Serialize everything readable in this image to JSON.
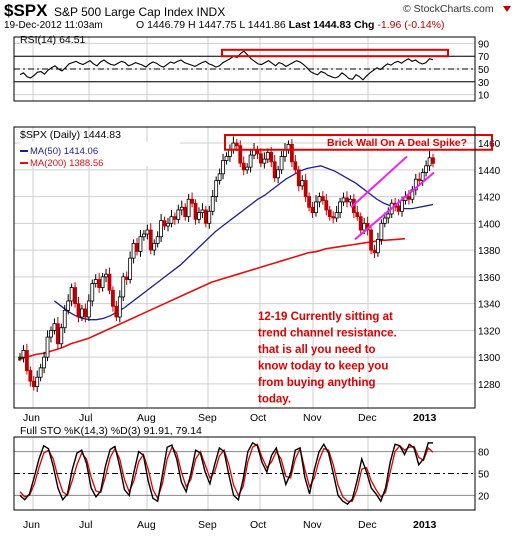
{
  "header": {
    "symbol": "$SPX",
    "name": "S&P 500 Large Cap Index INDX",
    "datetime": "19-Dec-2012 11:03am",
    "open_label": "O",
    "open": "1446.79",
    "high_label": "H",
    "high": "1447.75",
    "low_label": "L",
    "low": "1441.86",
    "last_label": "Last",
    "last": "1444.83",
    "chg_label": "Chg",
    "chg": "-1.96 (-0.14%)",
    "logo": "© StockCharts.com"
  },
  "colors": {
    "price": "#000000",
    "ma50": "#1f1f8f",
    "ma200": "#e01010",
    "pink": "#ee22ee",
    "red": "#e00000",
    "grid": "#cfcfcf"
  },
  "chart_data": [
    {
      "type": "line",
      "panel": "RSI",
      "legend": "RSI(14) 64.51",
      "ylim": [
        0,
        100
      ],
      "yticks": [
        10,
        30,
        50,
        70,
        90
      ],
      "reference_lines": [
        30,
        50,
        70
      ],
      "series": [
        {
          "name": "RSI(14)",
          "values": [
            41,
            44,
            38,
            36,
            40,
            45,
            46,
            42,
            48,
            52,
            55,
            50,
            47,
            52,
            58,
            60,
            62,
            59,
            57,
            60,
            63,
            58,
            55,
            61,
            64,
            60,
            57,
            56,
            59,
            62,
            60,
            55,
            57,
            60,
            58,
            56,
            53,
            58,
            61,
            59,
            55,
            53,
            57,
            61,
            59,
            62,
            64,
            60,
            58,
            56,
            54,
            57,
            60,
            62,
            58,
            56,
            53,
            55,
            60,
            63,
            66,
            70,
            68,
            74,
            78,
            72,
            66,
            62,
            58,
            57,
            60,
            63,
            59,
            55,
            60,
            58,
            54,
            57,
            60,
            63,
            61,
            57,
            52,
            46,
            43,
            41,
            46,
            44,
            40,
            38,
            36,
            38,
            44,
            40,
            35,
            34,
            41,
            38,
            33,
            39,
            44,
            48,
            52,
            49,
            54,
            58,
            56,
            60,
            62,
            59,
            63,
            66,
            62,
            64,
            60,
            58,
            60,
            66,
            64.51
          ]
        }
      ],
      "annotation_box_range": [
        70,
        80
      ]
    },
    {
      "type": "candlestick",
      "panel": "Price",
      "legend": [
        "$SPX (Daily) 1444.83",
        "MA(50) 1414.06",
        "MA(200) 1388.56"
      ],
      "ylim": [
        1262,
        1472
      ],
      "yticks": [
        1280,
        1300,
        1320,
        1340,
        1360,
        1380,
        1400,
        1420,
        1440,
        1460
      ],
      "xlabels": [
        "Jun",
        "Jul",
        "Aug",
        "Sep",
        "Oct",
        "Nov",
        "Dec",
        "2013"
      ],
      "series": [
        {
          "name": "$SPX",
          "values": [
            1300,
            1305,
            1290,
            1282,
            1278,
            1285,
            1292,
            1300,
            1315,
            1320,
            1325,
            1310,
            1322,
            1335,
            1342,
            1352,
            1340,
            1330,
            1336,
            1330,
            1342,
            1355,
            1358,
            1352,
            1360,
            1362,
            1350,
            1338,
            1330,
            1345,
            1360,
            1358,
            1374,
            1385,
            1379,
            1390,
            1392,
            1395,
            1380,
            1385,
            1390,
            1402,
            1398,
            1400,
            1405,
            1403,
            1410,
            1412,
            1405,
            1418,
            1415,
            1403,
            1408,
            1410,
            1400,
            1409,
            1420,
            1432,
            1437,
            1447,
            1450,
            1455,
            1460,
            1458,
            1445,
            1440,
            1442,
            1451,
            1455,
            1452,
            1445,
            1448,
            1453,
            1446,
            1434,
            1440,
            1450,
            1455,
            1459,
            1446,
            1440,
            1428,
            1432,
            1420,
            1412,
            1408,
            1416,
            1420,
            1417,
            1410,
            1405,
            1404,
            1408,
            1416,
            1419,
            1416,
            1418,
            1408,
            1405,
            1395,
            1400,
            1395,
            1380,
            1378,
            1388,
            1400,
            1404,
            1407,
            1415,
            1413,
            1409,
            1417,
            1420,
            1418,
            1425,
            1433,
            1432,
            1438,
            1443,
            1449,
            1444.83
          ]
        },
        {
          "name": "MA(50)",
          "start_index": 10,
          "values": [
            1342,
            1338,
            1334,
            1331,
            1329,
            1328,
            1328,
            1329,
            1331,
            1334,
            1337,
            1341,
            1345,
            1349,
            1353,
            1357,
            1361,
            1365,
            1369,
            1374,
            1379,
            1384,
            1389,
            1394,
            1398,
            1402,
            1406,
            1410,
            1414,
            1418,
            1421,
            1425,
            1429,
            1433,
            1436,
            1439,
            1441,
            1442,
            1443,
            1441,
            1439,
            1436,
            1433,
            1430,
            1426,
            1422,
            1418,
            1415,
            1413,
            1412,
            1411,
            1411,
            1412,
            1413,
            1414.06
          ]
        },
        {
          "name": "MA(200)",
          "values": [
            1298,
            1300,
            1302,
            1303,
            1305,
            1307,
            1310,
            1312,
            1314,
            1317,
            1320,
            1323,
            1326,
            1329,
            1332,
            1335,
            1338,
            1341,
            1344,
            1347,
            1350,
            1353,
            1356,
            1358,
            1360,
            1362,
            1364,
            1366,
            1368,
            1370,
            1372,
            1374,
            1376,
            1378,
            1379,
            1381,
            1382,
            1383,
            1384,
            1385,
            1386,
            1387,
            1387.5,
            1388,
            1388.56
          ]
        }
      ],
      "annotations": [
        {
          "text": "Brick Wall On A Deal Spike?",
          "range": [
            1455,
            1466
          ]
        },
        {
          "text": "12-19 Currently sitting at trend channel resistance. that is all you need to know today to keep you from buying anything today."
        }
      ],
      "trend_channel": {
        "upper": [
          [
            1412,
            1450
          ]
        ],
        "lower": [
          [
            1388,
            1438
          ]
        ]
      }
    },
    {
      "type": "line",
      "panel": "STO",
      "legend": "Full STO %K(14,3) %D(3) 91.91, 79.14",
      "ylim": [
        0,
        100
      ],
      "yticks": [
        20,
        50,
        80
      ],
      "series": [
        {
          "name": "%K(14,3)",
          "values": [
            20,
            14,
            22,
            45,
            70,
            88,
            84,
            60,
            30,
            14,
            22,
            55,
            78,
            82,
            64,
            30,
            18,
            26,
            60,
            83,
            87,
            60,
            28,
            20,
            52,
            80,
            75,
            40,
            16,
            12,
            48,
            86,
            89,
            70,
            38,
            25,
            50,
            82,
            78,
            52,
            36,
            62,
            85,
            80,
            48,
            20,
            14,
            42,
            80,
            92,
            88,
            65,
            52,
            75,
            85,
            60,
            35,
            50,
            82,
            85,
            45,
            22,
            55,
            80,
            90,
            78,
            50,
            20,
            12,
            8,
            15,
            40,
            70,
            52,
            30,
            22,
            12,
            30,
            66,
            90,
            88,
            76,
            90,
            85,
            62,
            70,
            92,
            91.91
          ]
        },
        {
          "name": "%D(3)",
          "values": [
            25,
            18,
            20,
            35,
            58,
            78,
            82,
            70,
            45,
            25,
            20,
            40,
            62,
            78,
            70,
            45,
            26,
            24,
            46,
            72,
            84,
            70,
            42,
            25,
            40,
            66,
            76,
            56,
            28,
            16,
            36,
            70,
            86,
            78,
            52,
            32,
            42,
            70,
            80,
            62,
            44,
            52,
            74,
            82,
            62,
            34,
            20,
            32,
            66,
            86,
            90,
            72,
            58,
            66,
            80,
            70,
            46,
            44,
            70,
            84,
            56,
            32,
            44,
            68,
            84,
            82,
            62,
            34,
            18,
            12,
            12,
            28,
            56,
            58,
            40,
            28,
            18,
            24,
            52,
            80,
            88,
            82,
            86,
            87,
            72,
            68,
            85,
            79.14
          ]
        }
      ],
      "reference_lines": [
        20,
        50,
        80
      ]
    }
  ]
}
